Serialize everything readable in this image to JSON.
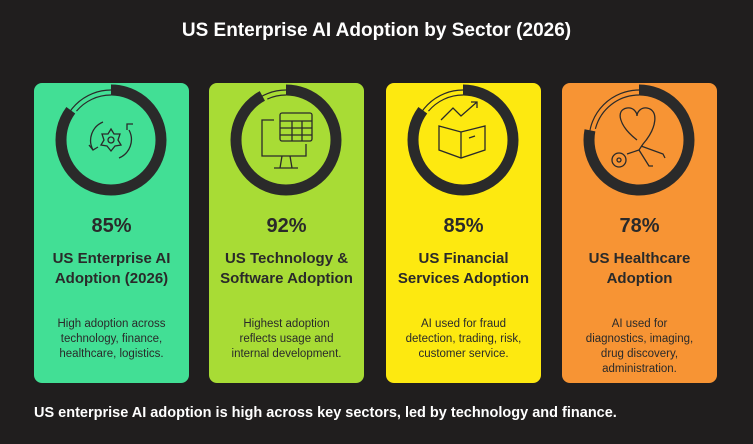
{
  "title": "US Enterprise AI Adoption by Sector (2026)",
  "cards": [
    {
      "percent": "85%",
      "value": 85,
      "heading": "US Enterprise AI Adoption (2026)",
      "description": "High adoption across technology, finance, healthcare, logistics.",
      "color": "#42df95",
      "icon": "gear-cycle-icon"
    },
    {
      "percent": "92%",
      "value": 92,
      "heading": "US Technology & Software Adoption",
      "description": "Highest adoption reflects usage and internal development.",
      "color": "#a8dc35",
      "icon": "monitor-spreadsheet-icon"
    },
    {
      "percent": "85%",
      "value": 85,
      "heading": "US Financial Services Adoption",
      "description": "AI used for fraud detection, trading, risk, customer service.",
      "color": "#fde910",
      "icon": "book-trend-icon"
    },
    {
      "percent": "78%",
      "value": 78,
      "heading": "US Healthcare Adoption",
      "description": "AI used for diagnostics, imaging, drug discovery, administration.",
      "color": "#f79434",
      "icon": "heart-stethoscope-icon"
    }
  ],
  "footer": "US enterprise AI adoption is high across key sectors, led by technology and finance."
}
